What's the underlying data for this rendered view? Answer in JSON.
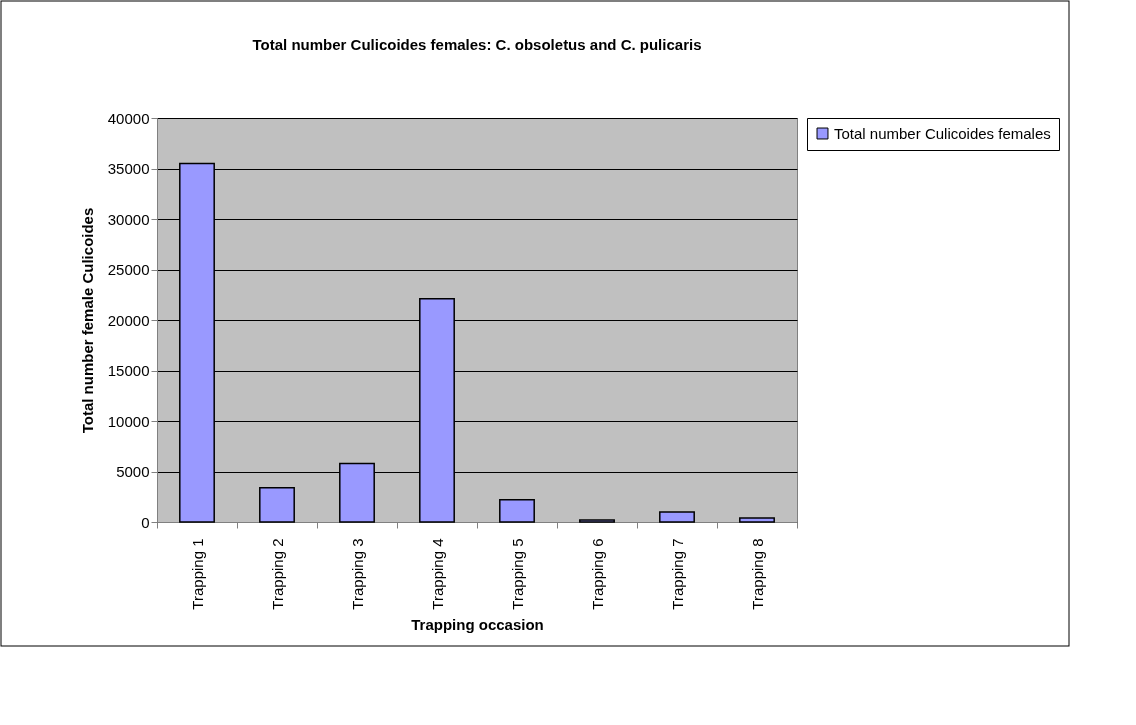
{
  "chart_data": {
    "type": "bar",
    "title": "Total number Culicoides females: C. obsoletus and C. pulicaris",
    "xlabel": "Trapping occasion",
    "ylabel": "Total number female Culicoides",
    "categories": [
      "Trapping 1",
      "Trapping 2",
      "Trapping 3",
      "Trapping 4",
      "Trapping 5",
      "Trapping 6",
      "Trapping 7",
      "Trapping 8"
    ],
    "series": [
      {
        "name": "Total number Culicoides females",
        "color": "#9999ff",
        "values": [
          35500,
          3400,
          5800,
          22100,
          2200,
          200,
          1000,
          400
        ]
      }
    ],
    "ylim": [
      0,
      40000
    ],
    "yticks": [
      0,
      5000,
      10000,
      15000,
      20000,
      25000,
      30000,
      35000,
      40000
    ],
    "grid": "y",
    "legend": "right"
  }
}
